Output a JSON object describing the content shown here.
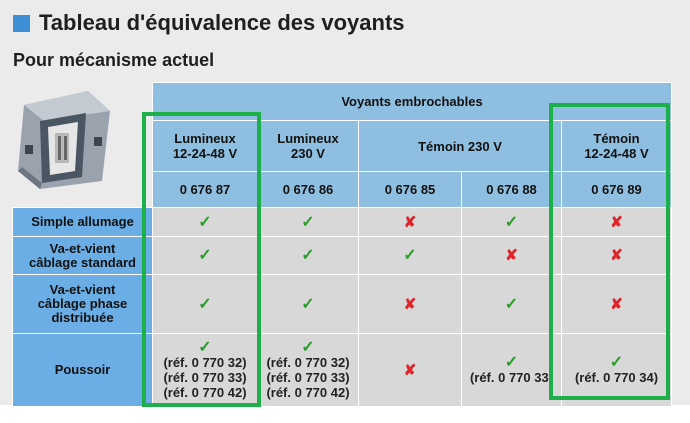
{
  "title": "Tableau d'équivalence des voyants",
  "subtitle": "Pour mécanisme actuel",
  "table": {
    "group_header": "Voyants embrochables",
    "columns": [
      {
        "name_line1": "Lumineux",
        "name_line2": "12-24-48 V",
        "ref": "0 676 87"
      },
      {
        "name_line1": "Lumineux",
        "name_line2": "230 V",
        "ref": "0 676 86"
      },
      {
        "name_line1": "Témoin 230 V",
        "name_line2": "",
        "ref": "0 676 85"
      },
      {
        "name_line1": "",
        "name_line2": "",
        "ref": "0 676 88"
      },
      {
        "name_line1": "Témoin",
        "name_line2": "12-24-48 V",
        "ref": "0 676 89"
      }
    ],
    "rows": [
      {
        "label_lines": [
          "Simple allumage"
        ],
        "cells": [
          "check",
          "check",
          "cross",
          "check",
          "cross"
        ]
      },
      {
        "label_lines": [
          "Va-et-vient",
          "câblage standard"
        ],
        "cells": [
          "check",
          "check",
          "check",
          "cross",
          "cross"
        ]
      },
      {
        "label_lines": [
          "Va-et-vient",
          "câblage phase",
          "distribuée"
        ],
        "cells": [
          "check",
          "check",
          "cross",
          "check",
          "cross"
        ]
      },
      {
        "label_lines": [
          "Poussoir"
        ],
        "cells": [
          "check",
          "check",
          "cross",
          "check",
          "check"
        ],
        "notes": [
          [
            "(réf. 0 770 32)",
            "(réf. 0 770 33)",
            "(réf. 0 770 42)"
          ],
          [
            "(réf. 0 770 32)",
            "(réf. 0 770 33)",
            "(réf. 0 770 42)"
          ],
          [],
          [
            "(réf. 0 770 33)"
          ],
          [
            "(réf. 0 770 34)"
          ]
        ]
      }
    ]
  },
  "symbols": {
    "check": "✓",
    "cross": "✘"
  },
  "colors": {
    "header_blue": "#8fbfe0",
    "label_blue": "#6aaee5",
    "cell_grey": "#d8d8d8",
    "highlight_green": "#1db04a",
    "check_green": "#2a9d2a",
    "cross_red": "#e0242a"
  }
}
